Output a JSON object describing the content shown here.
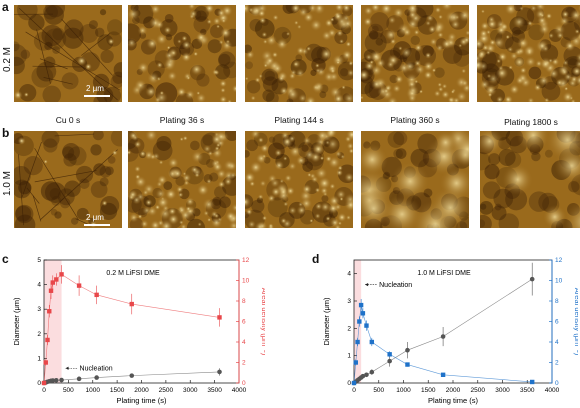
{
  "panels": {
    "a": "a",
    "b": "b",
    "c": "c",
    "d": "d"
  },
  "rows": {
    "top_label": "0.2 M",
    "bottom_label": "1.0 M"
  },
  "captions": [
    "Cu 0 s",
    "Plating 36 s",
    "Plating 144 s",
    "Plating 360 s",
    "Plating 1800 s"
  ],
  "scalebar": "2 μm",
  "colors": {
    "afm_dark": "#3a1f05",
    "afm_mid": "#9a6a1c",
    "afm_light": "#f4e1a0",
    "red": "#e8474a",
    "blue": "#1f72c9",
    "grey": "#555555",
    "nucleation_shade_red": "#f9c7c9",
    "nucleation_shade_blue": "#f9c7c9"
  },
  "chart_data": [
    {
      "type": "line",
      "panel": "c",
      "title": "0.2 M LiFSI DME",
      "xlabel": "Plating time (s)",
      "ylabel_left": "Diameter (μm)",
      "ylabel_right": "Areal density (μm⁻²)",
      "xlim": [
        0,
        4000
      ],
      "ylim_left": [
        0,
        5
      ],
      "ylim_right": [
        0,
        12
      ],
      "xticks": [
        "0",
        "500",
        "1000",
        "1500",
        "2000",
        "2500",
        "3000",
        "3500",
        "4000"
      ],
      "yticks_left": [
        "0",
        "1",
        "2",
        "3",
        "4",
        "5"
      ],
      "yticks_right": [
        "0",
        "2",
        "4",
        "6",
        "8",
        "10",
        "12"
      ],
      "annotation": "Nucleation",
      "nucleation_span": [
        0,
        360
      ],
      "series": [
        {
          "axis": "left",
          "color": "grey",
          "x": [
            0,
            36,
            72,
            108,
            144,
            180,
            252,
            360,
            720,
            1080,
            1800,
            3600
          ],
          "y": [
            0,
            0.02,
            0.05,
            0.07,
            0.09,
            0.1,
            0.11,
            0.12,
            0.17,
            0.22,
            0.3,
            0.45
          ],
          "err": [
            0,
            0.01,
            0.02,
            0.02,
            0.03,
            0.03,
            0.03,
            0.04,
            0.05,
            0.06,
            0.08,
            0.15
          ]
        },
        {
          "axis": "right",
          "color": "red",
          "x": [
            0,
            36,
            72,
            108,
            144,
            180,
            252,
            360,
            720,
            1080,
            1800,
            3600
          ],
          "y": [
            0,
            2.0,
            4.2,
            7.0,
            9.0,
            9.8,
            10.1,
            10.6,
            9.5,
            8.6,
            7.7,
            6.4
          ],
          "err": [
            0,
            0.3,
            0.5,
            0.6,
            0.8,
            0.7,
            0.6,
            0.9,
            1.0,
            0.9,
            1.0,
            0.9
          ]
        }
      ]
    },
    {
      "type": "line",
      "panel": "d",
      "title": "1.0 M LiFSI DME",
      "xlabel": "Plating time (s)",
      "ylabel_left": "Diameter (μm)",
      "ylabel_right": "Areal density (μm⁻²)",
      "xlim": [
        0,
        4000
      ],
      "ylim_left": [
        0,
        4.5
      ],
      "ylim_right": [
        0,
        12
      ],
      "xticks": [
        "0",
        "500",
        "1000",
        "1500",
        "2000",
        "2500",
        "3000",
        "3500",
        "4000"
      ],
      "yticks_left": [
        "0",
        "1",
        "2",
        "3",
        "4"
      ],
      "yticks_right": [
        "0",
        "2",
        "4",
        "6",
        "8",
        "10",
        "12"
      ],
      "annotation": "Nucleation",
      "nucleation_span": [
        0,
        144
      ],
      "series": [
        {
          "axis": "left",
          "color": "grey",
          "x": [
            0,
            36,
            72,
            108,
            144,
            180,
            252,
            360,
            720,
            1080,
            1800,
            3600
          ],
          "y": [
            0,
            0.05,
            0.1,
            0.15,
            0.2,
            0.25,
            0.3,
            0.4,
            0.8,
            1.2,
            1.7,
            3.8
          ],
          "err": [
            0,
            0.02,
            0.03,
            0.05,
            0.05,
            0.06,
            0.08,
            0.1,
            0.2,
            0.3,
            0.35,
            0.6
          ]
        },
        {
          "axis": "right",
          "color": "blue",
          "x": [
            0,
            36,
            72,
            108,
            144,
            180,
            252,
            360,
            720,
            1080,
            1800,
            3600
          ],
          "y": [
            0,
            2.0,
            4.0,
            6.0,
            7.6,
            6.8,
            5.6,
            4.0,
            2.8,
            1.8,
            0.8,
            0.1
          ],
          "err": [
            0,
            0.3,
            0.4,
            0.5,
            0.6,
            0.5,
            0.5,
            0.4,
            0.3,
            0.2,
            0.1,
            0.05
          ]
        }
      ]
    }
  ]
}
